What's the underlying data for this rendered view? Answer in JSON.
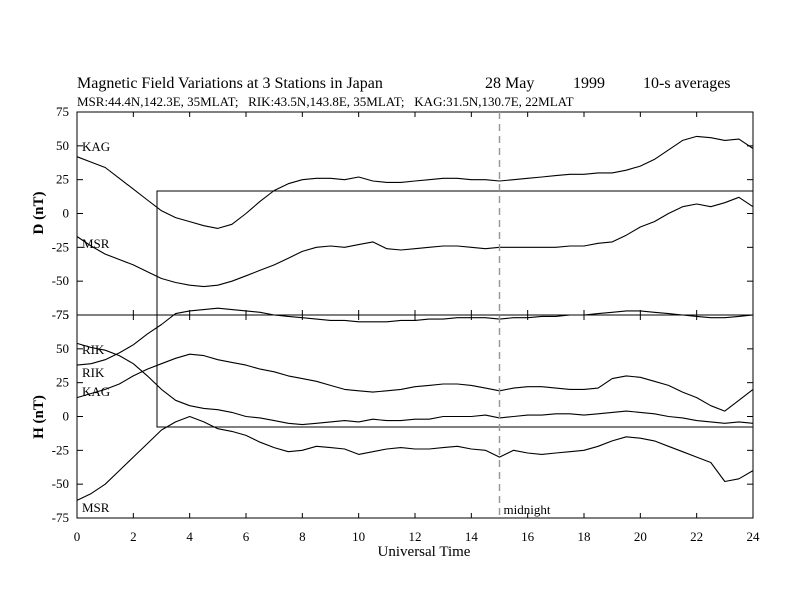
{
  "chart_data": [
    {
      "type": "line",
      "panel": "D",
      "title": "Magnetic Field Variations at 3 Stations in Japan",
      "date": "28  May",
      "year": "1999",
      "averaging": "10-s averages",
      "subtitle": "MSR:44.4N,142.3E, 35MLAT;   RIK:43.5N,143.8E, 35MLAT;   KAG:31.5N,130.7E, 22MLAT",
      "ylabel": "D (nT)",
      "xlabel": "",
      "xlim": [
        0,
        24
      ],
      "ylim": [
        -75,
        75
      ],
      "yticks": [
        "75",
        "50",
        "25",
        "0",
        "-25",
        "-50",
        "-75"
      ],
      "xticks": [],
      "series": [
        {
          "name": "KAG",
          "x": [
            0,
            0.5,
            1,
            1.5,
            2,
            2.5,
            3,
            3.5,
            4,
            4.5,
            5,
            5.5,
            6,
            6.5,
            7,
            7.5,
            8,
            8.5,
            9,
            9.5,
            10,
            10.5,
            11,
            11.5,
            12,
            12.5,
            13,
            13.5,
            14,
            14.5,
            15,
            15.5,
            16,
            16.5,
            17,
            17.5,
            18,
            18.5,
            19,
            19.5,
            20,
            20.5,
            21,
            21.5,
            22,
            22.5,
            23,
            23.5,
            24
          ],
          "values": [
            42,
            38,
            34,
            26,
            18,
            10,
            2,
            -3,
            -6,
            -9,
            -11,
            -8,
            0,
            9,
            17,
            22,
            25,
            26,
            26,
            25,
            27,
            24,
            23,
            23,
            24,
            25,
            26,
            26,
            25,
            25,
            24,
            25,
            26,
            27,
            28,
            29,
            29,
            30,
            30,
            32,
            35,
            40,
            47,
            54,
            57,
            56,
            54,
            55,
            48
          ]
        },
        {
          "name": "MSR",
          "x": [
            0,
            0.5,
            1,
            1.5,
            2,
            2.5,
            3,
            3.5,
            4,
            4.5,
            5,
            5.5,
            6,
            6.5,
            7,
            7.5,
            8,
            8.5,
            9,
            9.5,
            10,
            10.5,
            11,
            11.5,
            12,
            12.5,
            13,
            13.5,
            14,
            14.5,
            15,
            15.5,
            16,
            16.5,
            17,
            17.5,
            18,
            18.5,
            19,
            19.5,
            20,
            20.5,
            21,
            21.5,
            22,
            22.5,
            23,
            23.5,
            24
          ],
          "values": [
            -17,
            -24,
            -30,
            -34,
            -38,
            -43,
            -48,
            -51,
            -53,
            -54,
            -53,
            -50,
            -46,
            -42,
            -38,
            -33,
            -28,
            -25,
            -24,
            -25,
            -23,
            -21,
            -26,
            -27,
            -26,
            -25,
            -24,
            -24,
            -25,
            -26,
            -25,
            -25,
            -25,
            -25,
            -25,
            -24,
            -24,
            -22,
            -21,
            -16,
            -10,
            -6,
            0,
            5,
            7,
            5,
            8,
            12,
            5
          ]
        }
      ]
    },
    {
      "type": "line",
      "panel": "H",
      "ylabel": "H (nT)",
      "xlabel": "Universal Time",
      "xlim": [
        0,
        24
      ],
      "ylim": [
        -75,
        75
      ],
      "yticks": [
        "75",
        "50",
        "25",
        "0",
        "-25",
        "-50",
        "-75"
      ],
      "xticks": [
        "0",
        "2",
        "4",
        "6",
        "8",
        "10",
        "12",
        "14",
        "16",
        "18",
        "20",
        "22",
        "24"
      ],
      "annotation": "midnight",
      "midnight_ut": 15,
      "series": [
        {
          "name": "RIK",
          "x": [
            0,
            0.5,
            1,
            1.5,
            2,
            2.5,
            3,
            3.5,
            4,
            4.5,
            5,
            5.5,
            6,
            6.5,
            7,
            7.5,
            8,
            8.5,
            9,
            9.5,
            10,
            10.5,
            11,
            11.5,
            12,
            12.5,
            13,
            13.5,
            14,
            14.5,
            15,
            15.5,
            16,
            16.5,
            17,
            17.5,
            18,
            18.5,
            19,
            19.5,
            20,
            20.5,
            21,
            21.5,
            22,
            22.5,
            23,
            23.5,
            24
          ],
          "values": [
            54,
            51,
            49,
            45,
            39,
            30,
            20,
            12,
            8,
            6,
            5,
            3,
            0,
            -1,
            -3,
            -5,
            -6,
            -5,
            -4,
            -3,
            -4,
            -2,
            -3,
            -3,
            -2,
            -2,
            0,
            0,
            0,
            1,
            -1,
            0,
            1,
            1,
            2,
            2,
            1,
            2,
            3,
            4,
            3,
            2,
            0,
            -1,
            -3,
            -4,
            -5,
            -4,
            -5
          ]
        },
        {
          "name": "RIK",
          "x": [
            0,
            0.5,
            1,
            1.5,
            2,
            2.5,
            3,
            3.5,
            4,
            4.5,
            5,
            5.5,
            6,
            6.5,
            7,
            7.5,
            8,
            8.5,
            9,
            9.5,
            10,
            10.5,
            11,
            11.5,
            12,
            12.5,
            13,
            13.5,
            14,
            14.5,
            15,
            15.5,
            16,
            16.5,
            17,
            17.5,
            18,
            18.5,
            19,
            19.5,
            20,
            20.5,
            21,
            21.5,
            22,
            22.5,
            23,
            23.5,
            24
          ],
          "values": [
            38,
            39,
            42,
            47,
            53,
            61,
            68,
            76,
            78,
            79,
            80,
            79,
            78,
            77,
            75,
            74,
            73,
            72,
            71,
            71,
            70,
            70,
            70,
            71,
            71,
            72,
            72,
            73,
            73,
            73,
            72,
            73,
            73,
            74,
            74,
            75,
            75,
            76,
            77,
            78,
            78,
            77,
            76,
            75,
            74,
            73,
            73,
            74,
            75
          ]
        },
        {
          "name": "KAG",
          "x": [
            0,
            0.5,
            1,
            1.5,
            2,
            2.5,
            3,
            3.5,
            4,
            4.5,
            5,
            5.5,
            6,
            6.5,
            7,
            7.5,
            8,
            8.5,
            9,
            9.5,
            10,
            10.5,
            11,
            11.5,
            12,
            12.5,
            13,
            13.5,
            14,
            14.5,
            15,
            15.5,
            16,
            16.5,
            17,
            17.5,
            18,
            18.5,
            19,
            19.5,
            20,
            20.5,
            21,
            21.5,
            22,
            22.5,
            23,
            23.5,
            24
          ],
          "values": [
            14,
            17,
            20,
            24,
            30,
            35,
            39,
            43,
            46,
            45,
            42,
            40,
            38,
            35,
            33,
            30,
            28,
            26,
            23,
            20,
            19,
            18,
            19,
            20,
            22,
            23,
            24,
            24,
            23,
            21,
            19,
            21,
            22,
            22,
            21,
            20,
            20,
            21,
            28,
            30,
            29,
            26,
            23,
            18,
            14,
            8,
            4,
            12,
            20
          ]
        },
        {
          "name": "MSR",
          "x": [
            0,
            0.5,
            1,
            1.5,
            2,
            2.5,
            3,
            3.5,
            4,
            4.5,
            5,
            5.5,
            6,
            6.5,
            7,
            7.5,
            8,
            8.5,
            9,
            9.5,
            10,
            10.5,
            11,
            11.5,
            12,
            12.5,
            13,
            13.5,
            14,
            14.5,
            15,
            15.5,
            16,
            16.5,
            17,
            17.5,
            18,
            18.5,
            19,
            19.5,
            20,
            20.5,
            21,
            21.5,
            22,
            22.5,
            23,
            23.5,
            24
          ],
          "values": [
            -62,
            -57,
            -50,
            -40,
            -30,
            -20,
            -10,
            -4,
            0,
            -4,
            -9,
            -11,
            -14,
            -19,
            -23,
            -26,
            -25,
            -22,
            -23,
            -24,
            -28,
            -26,
            -24,
            -23,
            -24,
            -24,
            -23,
            -22,
            -24,
            -25,
            -30,
            -25,
            -27,
            -28,
            -27,
            -26,
            -25,
            -22,
            -18,
            -15,
            -16,
            -18,
            -22,
            -26,
            -30,
            -34,
            -48,
            -46,
            -40
          ]
        }
      ]
    }
  ]
}
